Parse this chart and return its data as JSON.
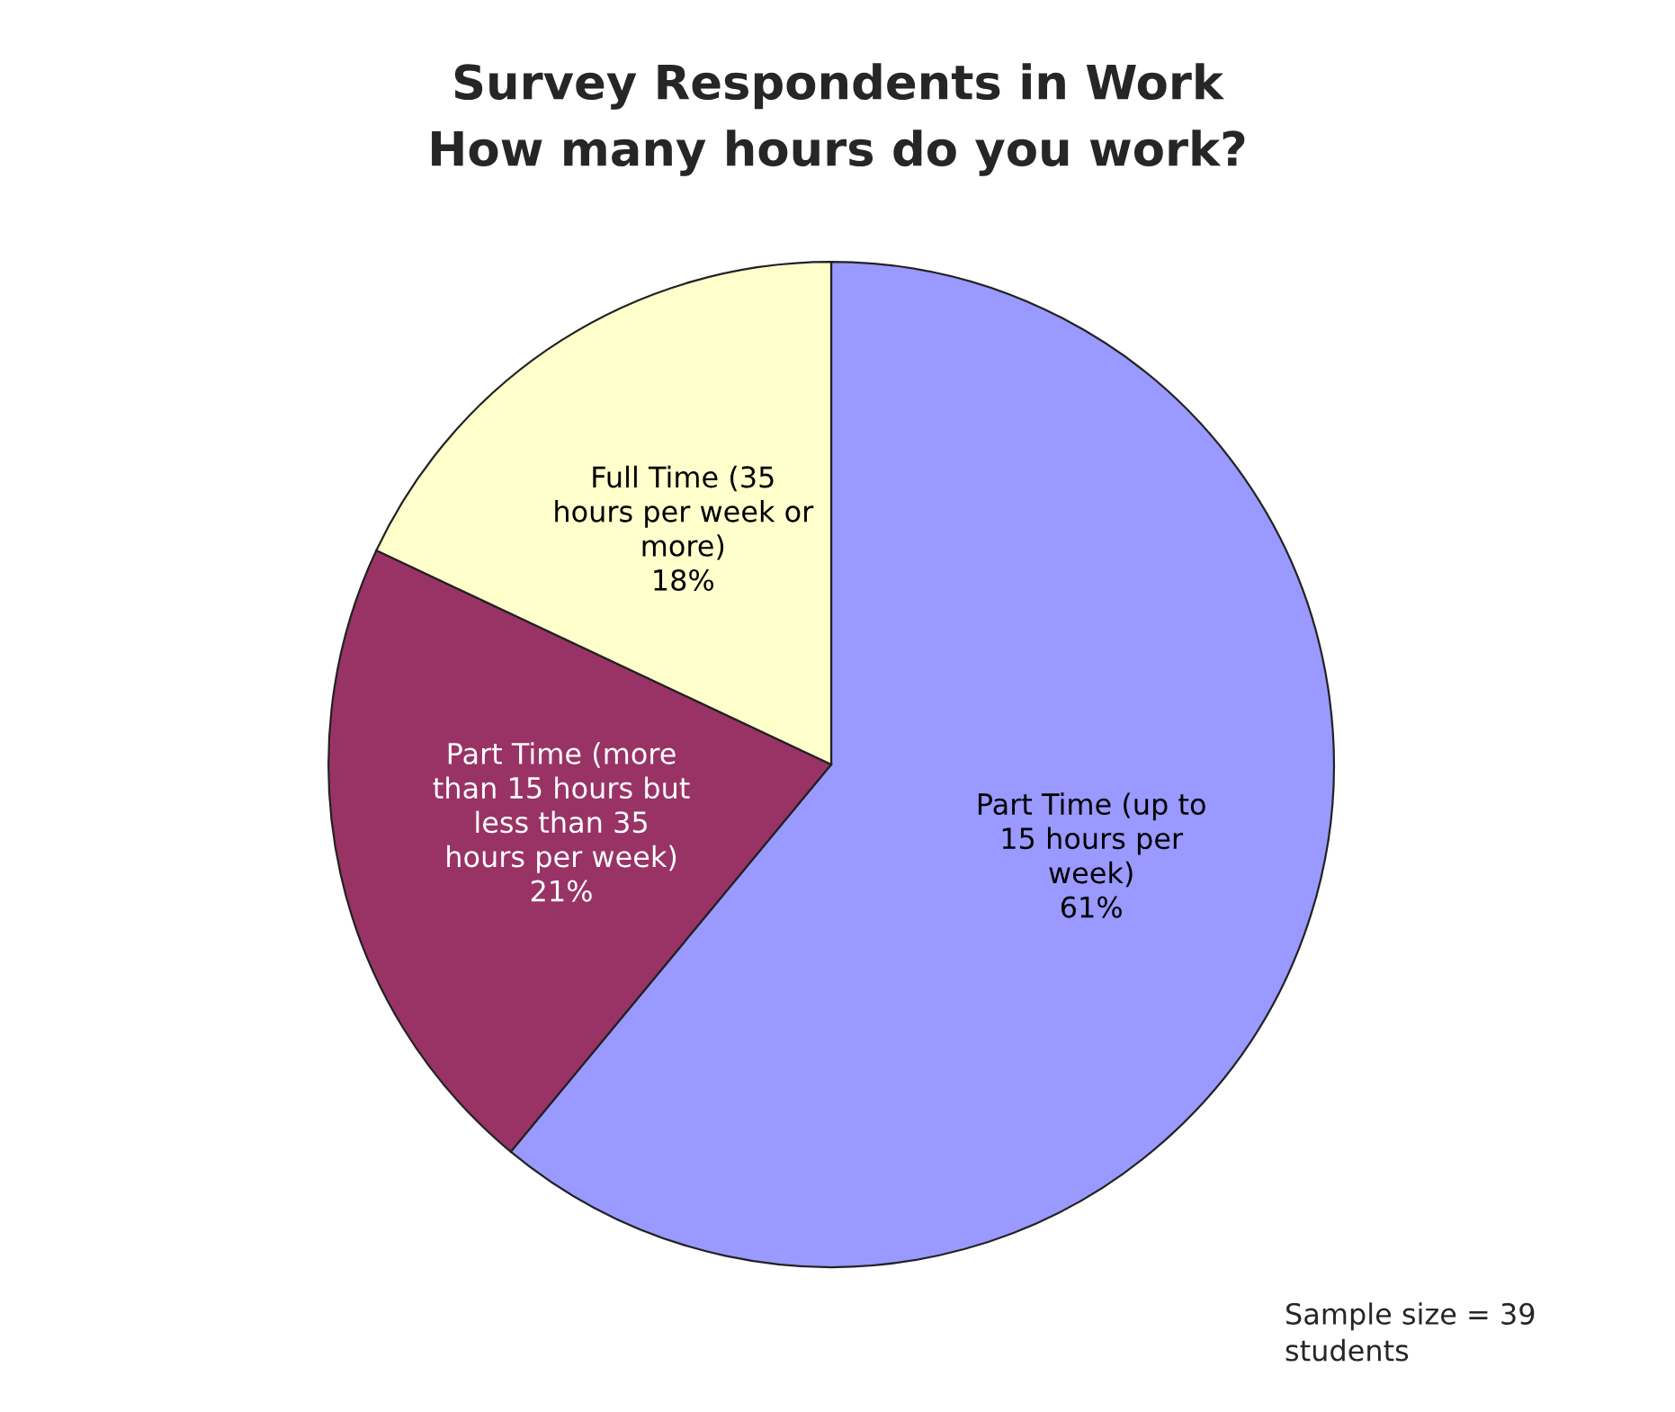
{
  "chart_data": {
    "type": "pie",
    "title": "Survey Respondents in Work",
    "subtitle": "How many hours do you work?",
    "categories": [
      "Part Time (up to 15 hours per week)",
      "Part Time (more than 15 hours but less than 35 hours per week)",
      "Full Time (35 hours per week or more)"
    ],
    "values": [
      61,
      21,
      18
    ],
    "value_labels": [
      "61%",
      "21%",
      "18%"
    ],
    "colors": [
      "#9999ff",
      "#993366",
      "#ffffcc"
    ],
    "annotations": [
      "Sample size = 39 students"
    ]
  }
}
